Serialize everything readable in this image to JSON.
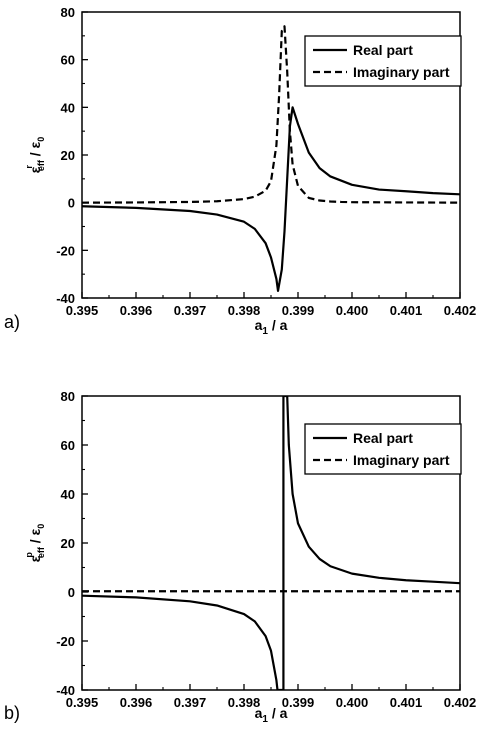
{
  "chart_data": [
    {
      "type": "line",
      "panel_label": "a)",
      "xlabel": {
        "main": "a",
        "sub": "1",
        "rest": " / a"
      },
      "ylabel": {
        "main": "ε",
        "sub": "eff",
        "sup": "r",
        "rest": " / ε",
        "sub2": "0"
      },
      "xlim": [
        0.395,
        0.402
      ],
      "ylim": [
        -40,
        80
      ],
      "xticks": [
        0.395,
        0.396,
        0.397,
        0.398,
        0.399,
        0.4,
        0.401,
        0.402
      ],
      "xtick_labels": [
        "0.395",
        "0.396",
        "0.397",
        "0.398",
        "0.399",
        "0.400",
        "0.401",
        "0.402"
      ],
      "yticks": [
        -40,
        -20,
        0,
        20,
        40,
        60,
        80
      ],
      "ytick_labels": [
        "-40",
        "-20",
        "0",
        "20",
        "40",
        "60",
        "80"
      ],
      "grid": false,
      "legend_position": "top-right",
      "series": [
        {
          "name": "Real part",
          "style": "solid",
          "x": [
            0.395,
            0.396,
            0.397,
            0.3975,
            0.398,
            0.3982,
            0.3984,
            0.3985,
            0.3986,
            0.39863,
            0.3987,
            0.39875,
            0.3988,
            0.39885,
            0.3989,
            0.399,
            0.3992,
            0.3994,
            0.3996,
            0.4,
            0.4005,
            0.401,
            0.4015,
            0.402
          ],
          "y": [
            -1.5,
            -2.2,
            -3.5,
            -5.0,
            -8.0,
            -11.0,
            -17.0,
            -23.0,
            -32.0,
            -37.0,
            -28.0,
            -12.0,
            10.0,
            32.0,
            40.0,
            33.0,
            21.0,
            14.5,
            11.0,
            7.5,
            5.5,
            4.8,
            4.0,
            3.5
          ]
        },
        {
          "name": "Imaginary part",
          "style": "dashed",
          "x": [
            0.395,
            0.396,
            0.397,
            0.3975,
            0.398,
            0.3982,
            0.3984,
            0.3985,
            0.3986,
            0.39865,
            0.3987,
            0.39875,
            0.3988,
            0.39885,
            0.3989,
            0.399,
            0.3992,
            0.3994,
            0.3996,
            0.3998,
            0.4,
            0.402
          ],
          "y": [
            0.0,
            0.1,
            0.3,
            0.6,
            1.5,
            2.5,
            5.0,
            9.0,
            24.0,
            45.0,
            72.0,
            74.0,
            55.0,
            30.0,
            16.0,
            7.0,
            2.0,
            0.9,
            0.5,
            0.3,
            0.2,
            0.0
          ]
        }
      ]
    },
    {
      "type": "line",
      "panel_label": "b)",
      "xlabel": {
        "main": "a",
        "sub": "1",
        "rest": " / a"
      },
      "ylabel": {
        "main": "ε",
        "sub": "eff",
        "sup": "p",
        "rest": " / ε",
        "sub2": "0"
      },
      "xlim": [
        0.395,
        0.402
      ],
      "ylim": [
        -40,
        80
      ],
      "xticks": [
        0.395,
        0.396,
        0.397,
        0.398,
        0.399,
        0.4,
        0.401,
        0.402
      ],
      "xtick_labels": [
        "0.395",
        "0.396",
        "0.397",
        "0.398",
        "0.399",
        "0.400",
        "0.401",
        "0.402"
      ],
      "yticks": [
        -40,
        -20,
        0,
        20,
        40,
        60,
        80
      ],
      "ytick_labels": [
        "-40",
        "-20",
        "0",
        "20",
        "40",
        "60",
        "80"
      ],
      "grid": false,
      "legend_position": "top-right",
      "series": [
        {
          "name": "Real part",
          "style": "solid",
          "x": [
            0.395,
            0.396,
            0.397,
            0.3975,
            0.398,
            0.3982,
            0.3984,
            0.3985,
            0.39855,
            0.3986,
            0.39862,
            0.39873,
            0.39873,
            0.3988,
            0.39883,
            0.3989,
            0.399,
            0.3992,
            0.3994,
            0.3996,
            0.4,
            0.4005,
            0.401,
            0.4015,
            0.402
          ],
          "y": [
            -1.5,
            -2.2,
            -3.8,
            -5.5,
            -9.0,
            -12.0,
            -18.0,
            -24.0,
            -30.0,
            -36.0,
            -40.0,
            -40.0,
            80.0,
            80.0,
            60.0,
            40.0,
            28.0,
            18.5,
            13.5,
            10.5,
            7.5,
            5.8,
            4.8,
            4.2,
            3.6
          ]
        },
        {
          "name": "Imaginary part",
          "style": "dashed",
          "x": [
            0.395,
            0.402
          ],
          "y": [
            0.3,
            0.3
          ]
        }
      ]
    }
  ]
}
